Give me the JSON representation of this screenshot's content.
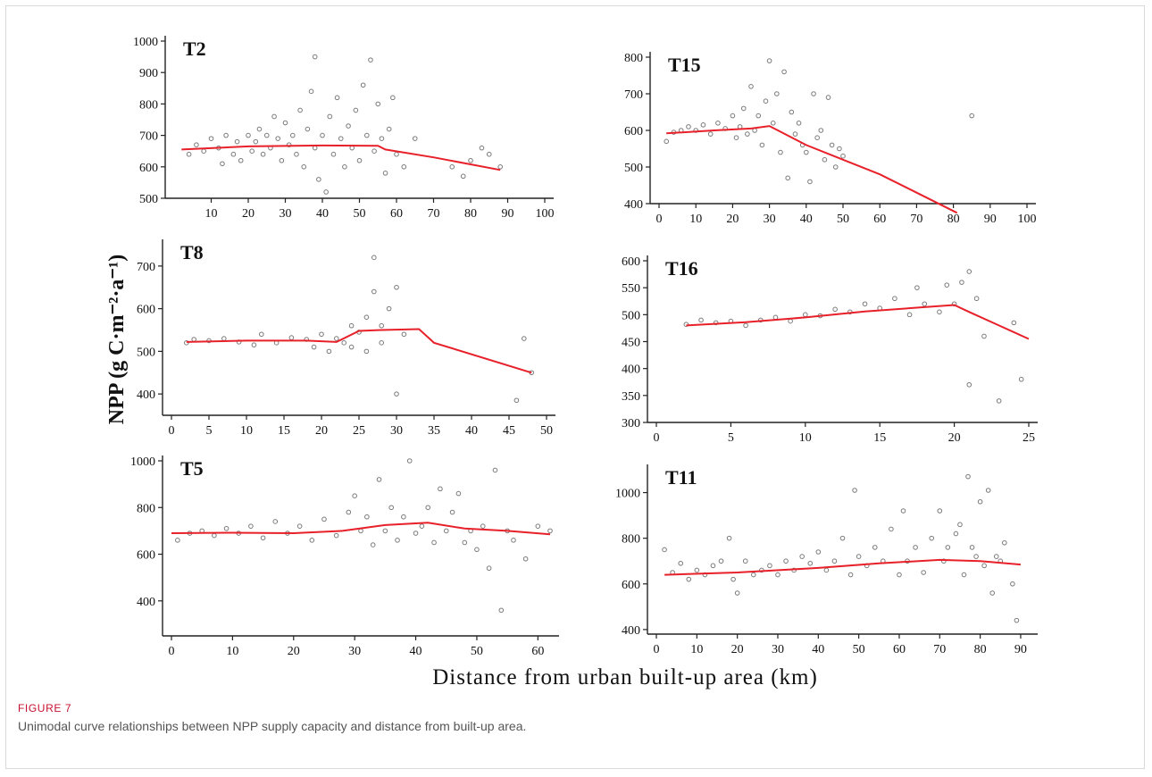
{
  "figure": {
    "label": "FIGURE 7",
    "caption": "Unimodal curve relationships between NPP supply capacity and distance from built-up area.",
    "ylabel": "NPP (g C·m⁻²·a⁻¹)",
    "xlabel": "Distance from urban built-up area (km)",
    "colors": {
      "fit_line": "#e8202a",
      "points": "#7a7a7a",
      "axis": "#222222"
    }
  },
  "chart_data": [
    {
      "type": "scatter",
      "title": "T2",
      "xlim": [
        0,
        100
      ],
      "ylim": [
        500,
        1000
      ],
      "xticks": [
        10,
        20,
        30,
        40,
        50,
        60,
        70,
        80,
        90,
        100
      ],
      "yticks": [
        500,
        600,
        700,
        800,
        900,
        1000
      ],
      "fit": [
        [
          2,
          655
        ],
        [
          20,
          665
        ],
        [
          40,
          668
        ],
        [
          55,
          667
        ],
        [
          57,
          655
        ],
        [
          70,
          630
        ],
        [
          88,
          590
        ]
      ],
      "points": [
        [
          4,
          640
        ],
        [
          6,
          670
        ],
        [
          8,
          650
        ],
        [
          10,
          690
        ],
        [
          12,
          660
        ],
        [
          13,
          610
        ],
        [
          14,
          700
        ],
        [
          16,
          640
        ],
        [
          17,
          680
        ],
        [
          18,
          620
        ],
        [
          20,
          700
        ],
        [
          21,
          650
        ],
        [
          22,
          680
        ],
        [
          23,
          720
        ],
        [
          24,
          640
        ],
        [
          25,
          700
        ],
        [
          26,
          660
        ],
        [
          27,
          760
        ],
        [
          28,
          690
        ],
        [
          29,
          620
        ],
        [
          30,
          740
        ],
        [
          31,
          670
        ],
        [
          32,
          700
        ],
        [
          33,
          640
        ],
        [
          34,
          780
        ],
        [
          35,
          600
        ],
        [
          36,
          720
        ],
        [
          37,
          840
        ],
        [
          38,
          660
        ],
        [
          38,
          950
        ],
        [
          39,
          560
        ],
        [
          40,
          700
        ],
        [
          41,
          520
        ],
        [
          42,
          760
        ],
        [
          43,
          640
        ],
        [
          44,
          820
        ],
        [
          45,
          690
        ],
        [
          46,
          600
        ],
        [
          47,
          730
        ],
        [
          48,
          660
        ],
        [
          49,
          780
        ],
        [
          50,
          620
        ],
        [
          51,
          860
        ],
        [
          52,
          700
        ],
        [
          53,
          940
        ],
        [
          54,
          650
        ],
        [
          55,
          800
        ],
        [
          56,
          690
        ],
        [
          57,
          580
        ],
        [
          58,
          720
        ],
        [
          59,
          820
        ],
        [
          60,
          640
        ],
        [
          62,
          600
        ],
        [
          65,
          690
        ],
        [
          75,
          600
        ],
        [
          78,
          570
        ],
        [
          80,
          620
        ],
        [
          83,
          660
        ],
        [
          85,
          640
        ],
        [
          88,
          600
        ]
      ]
    },
    {
      "type": "scatter",
      "title": "T15",
      "xlim": [
        0,
        100
      ],
      "ylim": [
        400,
        800
      ],
      "xticks": [
        0,
        10,
        20,
        30,
        40,
        50,
        60,
        70,
        80,
        90,
        100
      ],
      "yticks": [
        400,
        500,
        600,
        700,
        800
      ],
      "fit": [
        [
          2,
          592
        ],
        [
          15,
          600
        ],
        [
          25,
          605
        ],
        [
          30,
          612
        ],
        [
          40,
          560
        ],
        [
          50,
          520
        ],
        [
          60,
          480
        ],
        [
          70,
          430
        ],
        [
          81,
          375
        ]
      ],
      "points": [
        [
          2,
          570
        ],
        [
          4,
          595
        ],
        [
          6,
          600
        ],
        [
          8,
          610
        ],
        [
          10,
          600
        ],
        [
          12,
          615
        ],
        [
          14,
          590
        ],
        [
          16,
          620
        ],
        [
          18,
          605
        ],
        [
          20,
          640
        ],
        [
          21,
          580
        ],
        [
          22,
          610
        ],
        [
          23,
          660
        ],
        [
          24,
          590
        ],
        [
          25,
          720
        ],
        [
          26,
          600
        ],
        [
          27,
          640
        ],
        [
          28,
          560
        ],
        [
          29,
          680
        ],
        [
          30,
          790
        ],
        [
          31,
          620
        ],
        [
          32,
          700
        ],
        [
          33,
          540
        ],
        [
          34,
          760
        ],
        [
          35,
          470
        ],
        [
          36,
          650
        ],
        [
          37,
          590
        ],
        [
          38,
          620
        ],
        [
          39,
          560
        ],
        [
          40,
          540
        ],
        [
          41,
          460
        ],
        [
          42,
          700
        ],
        [
          43,
          580
        ],
        [
          44,
          600
        ],
        [
          45,
          520
        ],
        [
          46,
          690
        ],
        [
          47,
          560
        ],
        [
          48,
          500
        ],
        [
          49,
          550
        ],
        [
          50,
          530
        ],
        [
          85,
          640
        ]
      ]
    },
    {
      "type": "scatter",
      "title": "T8",
      "xlim": [
        0,
        50
      ],
      "ylim": [
        350,
        750
      ],
      "xticks": [
        0,
        5,
        10,
        15,
        20,
        25,
        30,
        35,
        40,
        45,
        50
      ],
      "yticks": [
        400,
        500,
        600,
        700
      ],
      "fit": [
        [
          2,
          522
        ],
        [
          10,
          525
        ],
        [
          18,
          525
        ],
        [
          22,
          522
        ],
        [
          25,
          548
        ],
        [
          28,
          550
        ],
        [
          33,
          552
        ],
        [
          35,
          520
        ],
        [
          48,
          450
        ]
      ],
      "points": [
        [
          2,
          520
        ],
        [
          3,
          528
        ],
        [
          5,
          525
        ],
        [
          7,
          530
        ],
        [
          9,
          522
        ],
        [
          11,
          515
        ],
        [
          12,
          540
        ],
        [
          14,
          520
        ],
        [
          16,
          532
        ],
        [
          18,
          528
        ],
        [
          19,
          510
        ],
        [
          20,
          540
        ],
        [
          21,
          500
        ],
        [
          22,
          530
        ],
        [
          23,
          520
        ],
        [
          24,
          510
        ],
        [
          24,
          560
        ],
        [
          25,
          545
        ],
        [
          26,
          580
        ],
        [
          26,
          500
        ],
        [
          27,
          720
        ],
        [
          27,
          640
        ],
        [
          28,
          560
        ],
        [
          28,
          520
        ],
        [
          29,
          600
        ],
        [
          30,
          650
        ],
        [
          30,
          400
        ],
        [
          31,
          540
        ],
        [
          47,
          530
        ],
        [
          46,
          385
        ],
        [
          48,
          450
        ]
      ]
    },
    {
      "type": "scatter",
      "title": "T16",
      "xlim": [
        0,
        25
      ],
      "ylim": [
        300,
        600
      ],
      "xticks": [
        0,
        5,
        10,
        15,
        20,
        25
      ],
      "yticks": [
        300,
        350,
        400,
        450,
        500,
        550,
        600
      ],
      "fit": [
        [
          2,
          480
        ],
        [
          6,
          486
        ],
        [
          10,
          495
        ],
        [
          14,
          506
        ],
        [
          18,
          514
        ],
        [
          20,
          518
        ],
        [
          21,
          505
        ],
        [
          23,
          480
        ],
        [
          25,
          455
        ]
      ],
      "points": [
        [
          2,
          482
        ],
        [
          3,
          490
        ],
        [
          4,
          485
        ],
        [
          5,
          488
        ],
        [
          6,
          480
        ],
        [
          7,
          490
        ],
        [
          8,
          495
        ],
        [
          9,
          488
        ],
        [
          10,
          500
        ],
        [
          11,
          498
        ],
        [
          12,
          510
        ],
        [
          13,
          505
        ],
        [
          14,
          520
        ],
        [
          15,
          512
        ],
        [
          16,
          530
        ],
        [
          17,
          500
        ],
        [
          17.5,
          550
        ],
        [
          18,
          520
        ],
        [
          19,
          505
        ],
        [
          19.5,
          555
        ],
        [
          20,
          520
        ],
        [
          20.5,
          560
        ],
        [
          21,
          580
        ],
        [
          21,
          370
        ],
        [
          21.5,
          530
        ],
        [
          22,
          460
        ],
        [
          23,
          340
        ],
        [
          24,
          485
        ],
        [
          24.5,
          380
        ]
      ]
    },
    {
      "type": "scatter",
      "title": "T5",
      "xlim": [
        0,
        62
      ],
      "ylim": [
        250,
        1000
      ],
      "xticks": [
        0,
        10,
        20,
        30,
        40,
        50,
        60
      ],
      "yticks": [
        400,
        600,
        800,
        1000
      ],
      "fit": [
        [
          0,
          690
        ],
        [
          10,
          692
        ],
        [
          20,
          690
        ],
        [
          28,
          700
        ],
        [
          35,
          725
        ],
        [
          42,
          735
        ],
        [
          48,
          710
        ],
        [
          55,
          700
        ],
        [
          62,
          685
        ]
      ],
      "points": [
        [
          1,
          660
        ],
        [
          3,
          690
        ],
        [
          5,
          700
        ],
        [
          7,
          680
        ],
        [
          9,
          710
        ],
        [
          11,
          690
        ],
        [
          13,
          720
        ],
        [
          15,
          670
        ],
        [
          17,
          740
        ],
        [
          19,
          690
        ],
        [
          21,
          720
        ],
        [
          23,
          660
        ],
        [
          25,
          750
        ],
        [
          27,
          680
        ],
        [
          29,
          780
        ],
        [
          30,
          850
        ],
        [
          31,
          700
        ],
        [
          32,
          760
        ],
        [
          33,
          640
        ],
        [
          34,
          920
        ],
        [
          35,
          700
        ],
        [
          36,
          800
        ],
        [
          37,
          660
        ],
        [
          38,
          760
        ],
        [
          39,
          1000
        ],
        [
          40,
          690
        ],
        [
          41,
          720
        ],
        [
          42,
          800
        ],
        [
          43,
          650
        ],
        [
          44,
          880
        ],
        [
          45,
          700
        ],
        [
          46,
          780
        ],
        [
          47,
          860
        ],
        [
          48,
          650
        ],
        [
          49,
          700
        ],
        [
          50,
          620
        ],
        [
          51,
          720
        ],
        [
          52,
          540
        ],
        [
          53,
          960
        ],
        [
          54,
          360
        ],
        [
          55,
          700
        ],
        [
          56,
          660
        ],
        [
          58,
          580
        ],
        [
          60,
          720
        ],
        [
          62,
          700
        ]
      ]
    },
    {
      "type": "scatter",
      "title": "T11",
      "xlim": [
        0,
        92
      ],
      "ylim": [
        380,
        1100
      ],
      "xticks": [
        0,
        10,
        20,
        30,
        40,
        50,
        60,
        70,
        80,
        90
      ],
      "yticks": [
        400,
        600,
        800,
        1000
      ],
      "fit": [
        [
          2,
          640
        ],
        [
          20,
          650
        ],
        [
          40,
          670
        ],
        [
          55,
          690
        ],
        [
          70,
          705
        ],
        [
          80,
          700
        ],
        [
          90,
          685
        ]
      ],
      "points": [
        [
          2,
          750
        ],
        [
          4,
          650
        ],
        [
          6,
          690
        ],
        [
          8,
          620
        ],
        [
          10,
          660
        ],
        [
          12,
          640
        ],
        [
          14,
          680
        ],
        [
          16,
          700
        ],
        [
          18,
          800
        ],
        [
          19,
          620
        ],
        [
          20,
          560
        ],
        [
          22,
          700
        ],
        [
          24,
          640
        ],
        [
          26,
          660
        ],
        [
          28,
          680
        ],
        [
          30,
          640
        ],
        [
          32,
          700
        ],
        [
          34,
          660
        ],
        [
          36,
          720
        ],
        [
          38,
          690
        ],
        [
          40,
          740
        ],
        [
          42,
          660
        ],
        [
          44,
          700
        ],
        [
          46,
          800
        ],
        [
          48,
          640
        ],
        [
          49,
          1010
        ],
        [
          50,
          720
        ],
        [
          52,
          680
        ],
        [
          54,
          760
        ],
        [
          56,
          700
        ],
        [
          58,
          840
        ],
        [
          60,
          640
        ],
        [
          61,
          920
        ],
        [
          62,
          700
        ],
        [
          64,
          760
        ],
        [
          66,
          650
        ],
        [
          68,
          800
        ],
        [
          70,
          920
        ],
        [
          71,
          700
        ],
        [
          72,
          760
        ],
        [
          74,
          820
        ],
        [
          75,
          860
        ],
        [
          76,
          640
        ],
        [
          77,
          1070
        ],
        [
          78,
          760
        ],
        [
          79,
          720
        ],
        [
          80,
          960
        ],
        [
          81,
          680
        ],
        [
          82,
          1010
        ],
        [
          83,
          560
        ],
        [
          84,
          720
        ],
        [
          85,
          700
        ],
        [
          86,
          780
        ],
        [
          88,
          600
        ],
        [
          89,
          440
        ]
      ]
    }
  ]
}
